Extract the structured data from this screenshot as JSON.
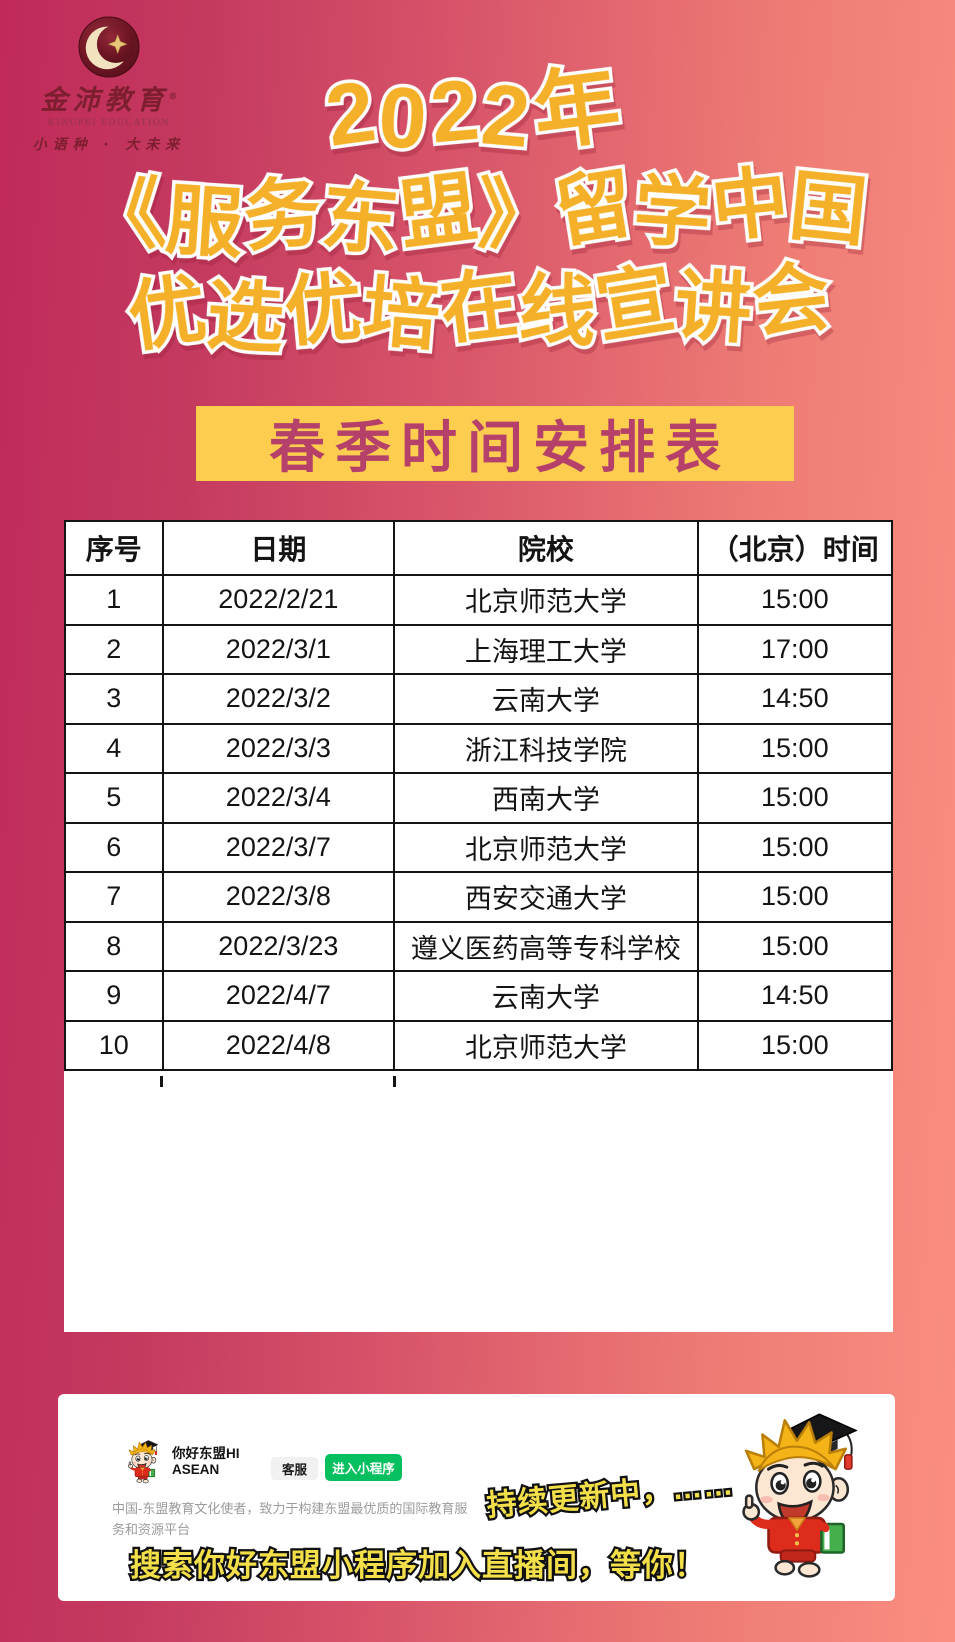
{
  "logo": {
    "name_cn": "金沛教育",
    "reg": "®",
    "name_en": "KINGPEI EDUCATION",
    "slogan": "小语种 · 大未来"
  },
  "title": {
    "line1": "2022年",
    "line2": "《服务东盟》留学中国",
    "line3": "优选优培在线宣讲会"
  },
  "banner": {
    "text": "春季时间安排表"
  },
  "schedule_table": {
    "headers": [
      "序号",
      "日期",
      "院校",
      "（北京）时间"
    ],
    "rows": [
      [
        "1",
        "2022/2/21",
        "北京师范大学",
        "15:00"
      ],
      [
        "2",
        "2022/3/1",
        "上海理工大学",
        "17:00"
      ],
      [
        "3",
        "2022/3/2",
        "云南大学",
        "14:50"
      ],
      [
        "4",
        "2022/3/3",
        "浙江科技学院",
        "15:00"
      ],
      [
        "5",
        "2022/3/4",
        "西南大学",
        "15:00"
      ],
      [
        "6",
        "2022/3/7",
        "北京师范大学",
        "15:00"
      ],
      [
        "7",
        "2022/3/8",
        "西安交通大学",
        "15:00"
      ],
      [
        "8",
        "2022/3/23",
        "遵义医药高等专科学校",
        "15:00"
      ],
      [
        "9",
        "2022/4/7",
        "云南大学",
        "14:50"
      ],
      [
        "10",
        "2022/4/8",
        "北京师范大学",
        "15:00"
      ]
    ]
  },
  "footer_card": {
    "miniprogram": {
      "title_line1": "你好东盟HI",
      "title_line2": "ASEAN",
      "service_btn": "客服",
      "enter_btn": "进入小程序",
      "description": "中国-东盟教育文化使者，致力于构建东盟最优质的国际教育服务和资源平台"
    },
    "updating_text": "持续更新中，……",
    "search_text": "搜索你好东盟小程序加入直播间，等你！"
  },
  "colors": {
    "bg_gradient_left": "#c02a5a",
    "bg_gradient_right": "#fa8d80",
    "title_yellow": "#f5b02a",
    "banner_bg": "#fccd4e",
    "banner_text": "#b5406a",
    "footer_text_yellow": "#f2df4a",
    "wechat_green": "#06c05f",
    "logo_dark_red": "#7d1e2e"
  }
}
